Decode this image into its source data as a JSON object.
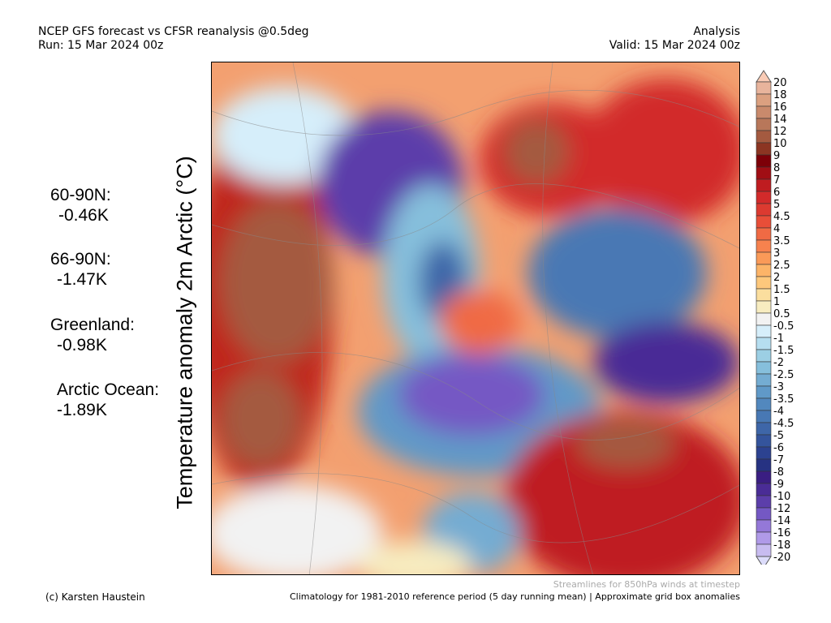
{
  "header": {
    "title": "NCEP GFS forecast vs CFSR reanalysis @0.5deg",
    "run": "Run: 15 Mar 2024 00z",
    "type": "Analysis",
    "valid": "Valid: 15 Mar 2024 00z"
  },
  "stats": [
    {
      "region": "60-90N:",
      "value": "-0.46K"
    },
    {
      "region": "66-90N:",
      "value": "-1.47K"
    },
    {
      "region": "Greenland:",
      "value": "-0.98K"
    },
    {
      "region": "Arctic Ocean:",
      "value": "-1.89K"
    }
  ],
  "footer": {
    "credit": "(c) Karsten Haustein",
    "streamlines": "Streamlines for 850hPa winds at timestep",
    "climatology": "Climatology for 1981-2010 reference period (5 day running mean) | Approximate grid box anomalies"
  },
  "chart_data": {
    "type": "heatmap",
    "title": "Temperature anomaly 2m Arctic (°C)",
    "colorbar": {
      "labels": [
        "20",
        "18",
        "16",
        "14",
        "12",
        "10",
        "9",
        "8",
        "7",
        "6",
        "5",
        "4.5",
        "4",
        "3.5",
        "3",
        "2.5",
        "2",
        "1.5",
        "1",
        "0.5",
        "-0.5",
        "-1",
        "-1.5",
        "-2",
        "-2.5",
        "-3",
        "-3.5",
        "-4",
        "-4.5",
        "-5",
        "-6",
        "-7",
        "-8",
        "-9",
        "-10",
        "-12",
        "-14",
        "-16",
        "-18",
        "-20"
      ],
      "colors": [
        "#e8b49c",
        "#dba080",
        "#c98a6c",
        "#b8775a",
        "#a45a40",
        "#8c3522",
        "#7d0008",
        "#a00e14",
        "#bf1c20",
        "#d22a2a",
        "#dc3a30",
        "#e84e38",
        "#f06a44",
        "#f7824e",
        "#fa9a58",
        "#fcb468",
        "#fdc87c",
        "#fbde9e",
        "#f7ecc0",
        "#f2f2f2",
        "#d6eefa",
        "#b6def0",
        "#9ccfe4",
        "#86bfdc",
        "#74acd2",
        "#6099c8",
        "#5288be",
        "#4878b4",
        "#3e66a8",
        "#34549c",
        "#2c4290",
        "#263282",
        "#3a1e82",
        "#4a2c96",
        "#5c3eaa",
        "#7458c4",
        "#9478d8",
        "#b09ae8",
        "#c8bcf0"
      ],
      "over_color": "#f9cbb5",
      "under_color": "#dcdcfa"
    }
  }
}
